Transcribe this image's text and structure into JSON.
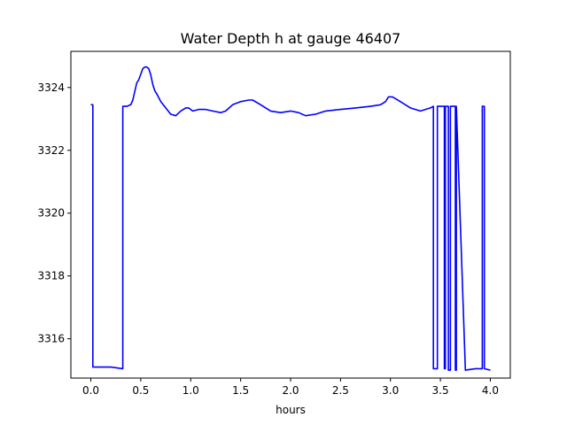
{
  "chart_data": {
    "type": "line",
    "title": "Water Depth h at gauge 46407",
    "xlabel": "hours",
    "ylabel": "",
    "xlim": [
      -0.2,
      4.2
    ],
    "ylim": [
      3314.75,
      3325.15
    ],
    "x_ticks": [
      "0.0",
      "0.5",
      "1.0",
      "1.5",
      "2.0",
      "2.5",
      "3.0",
      "3.5",
      "4.0"
    ],
    "y_ticks": [
      "3316",
      "3318",
      "3320",
      "3322",
      "3324"
    ],
    "grid": false,
    "legend": "none",
    "line_color": "#0000ff",
    "series": [
      {
        "x": [
          0.0,
          0.02,
          0.02,
          0.1,
          0.2,
          0.32,
          0.32,
          0.36,
          0.4,
          0.42,
          0.46,
          0.48,
          0.52,
          0.54,
          0.56,
          0.58,
          0.6,
          0.62,
          0.64,
          0.66,
          0.7,
          0.75,
          0.8,
          0.85,
          0.9,
          0.95,
          0.98,
          1.02,
          1.08,
          1.15,
          1.22,
          1.3,
          1.35,
          1.42,
          1.5,
          1.58,
          1.62,
          1.7,
          1.8,
          1.9,
          2.0,
          2.08,
          2.15,
          2.25,
          2.35,
          2.5,
          2.65,
          2.8,
          2.9,
          2.95,
          2.98,
          3.02,
          3.1,
          3.2,
          3.3,
          3.4,
          3.43,
          3.43,
          3.47,
          3.47,
          3.54,
          3.54,
          3.55,
          3.55,
          3.58,
          3.58,
          3.6,
          3.6,
          3.65,
          3.65,
          3.66,
          3.66,
          3.75,
          3.85,
          3.92,
          3.92,
          3.94,
          3.94,
          4.0
        ],
        "y": [
          3323.45,
          3323.45,
          3315.1,
          3315.1,
          3315.1,
          3315.05,
          3323.4,
          3323.4,
          3323.45,
          3323.6,
          3324.15,
          3324.25,
          3324.6,
          3324.65,
          3324.65,
          3324.6,
          3324.4,
          3324.1,
          3323.9,
          3323.8,
          3323.55,
          3323.35,
          3323.15,
          3323.1,
          3323.25,
          3323.35,
          3323.35,
          3323.25,
          3323.3,
          3323.3,
          3323.25,
          3323.2,
          3323.25,
          3323.45,
          3323.55,
          3323.6,
          3323.6,
          3323.45,
          3323.25,
          3323.2,
          3323.25,
          3323.2,
          3323.1,
          3323.15,
          3323.25,
          3323.3,
          3323.35,
          3323.4,
          3323.45,
          3323.55,
          3323.7,
          3323.7,
          3323.55,
          3323.35,
          3323.25,
          3323.35,
          3323.4,
          3315.05,
          3315.05,
          3323.4,
          3323.4,
          3315.05,
          3315.05,
          3323.4,
          3323.4,
          3315.0,
          3315.0,
          3323.4,
          3323.4,
          3315.0,
          3315.0,
          3323.4,
          3315.0,
          3315.05,
          3315.05,
          3323.4,
          3323.4,
          3315.05,
          3315.0
        ]
      }
    ]
  }
}
